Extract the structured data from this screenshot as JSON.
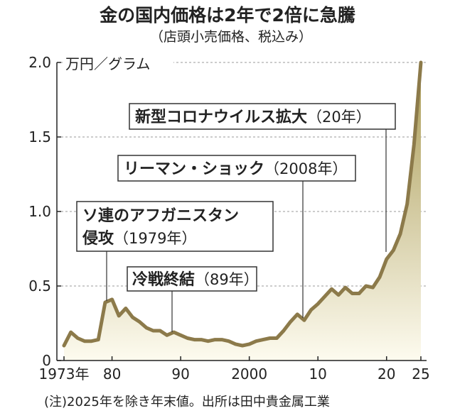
{
  "chart_data": {
    "type": "area",
    "title": "金の国内価格は2年で2倍に急騰",
    "subtitle": "（店頭小売価格、税込み）",
    "ylabel": "万円／グラム",
    "note": "(注)2025年を除き年末値。出所は田中貴金属工業",
    "ylim": [
      0,
      2.0
    ],
    "yticks": [
      {
        "value": 0,
        "label": "0"
      },
      {
        "value": 0.5,
        "label": "0.5"
      },
      {
        "value": 1.0,
        "label": "1.0"
      },
      {
        "value": 1.5,
        "label": "1.5"
      },
      {
        "value": 2.0,
        "label": "2.0"
      }
    ],
    "xlim": [
      1973,
      2025
    ],
    "xticks": [
      {
        "value": 1973,
        "label": "1973年"
      },
      {
        "value": 1980,
        "label": "80"
      },
      {
        "value": 1990,
        "label": "90"
      },
      {
        "value": 2000,
        "label": "2000"
      },
      {
        "value": 2010,
        "label": "10"
      },
      {
        "value": 2020,
        "label": "20"
      },
      {
        "value": 2025,
        "label": "25"
      }
    ],
    "x": [
      1973,
      1974,
      1975,
      1976,
      1977,
      1978,
      1979,
      1980,
      1981,
      1982,
      1983,
      1984,
      1985,
      1986,
      1987,
      1988,
      1989,
      1990,
      1991,
      1992,
      1993,
      1994,
      1995,
      1996,
      1997,
      1998,
      1999,
      2000,
      2001,
      2002,
      2003,
      2004,
      2005,
      2006,
      2007,
      2008,
      2009,
      2010,
      2011,
      2012,
      2013,
      2014,
      2015,
      2016,
      2017,
      2018,
      2019,
      2020,
      2021,
      2022,
      2023,
      2024,
      2025
    ],
    "values": [
      0.1,
      0.19,
      0.15,
      0.13,
      0.13,
      0.14,
      0.39,
      0.41,
      0.3,
      0.35,
      0.29,
      0.26,
      0.22,
      0.2,
      0.2,
      0.17,
      0.19,
      0.17,
      0.15,
      0.14,
      0.14,
      0.13,
      0.14,
      0.14,
      0.13,
      0.11,
      0.1,
      0.11,
      0.13,
      0.14,
      0.15,
      0.15,
      0.2,
      0.26,
      0.31,
      0.27,
      0.34,
      0.38,
      0.43,
      0.48,
      0.44,
      0.49,
      0.45,
      0.45,
      0.5,
      0.49,
      0.56,
      0.68,
      0.74,
      0.85,
      1.05,
      1.45,
      2.0
    ],
    "colors": {
      "line": "#8c7a4a",
      "fill_top": "#a99a54",
      "fill_bottom": "#fdfbef",
      "grid": "#9a9a9a"
    },
    "grid": true,
    "annotations": [
      {
        "year": 1979,
        "strong": "ソ連のアフガニスタン",
        "strong2": "侵攻",
        "light": "（1979年）"
      },
      {
        "year": 1989,
        "strong": "冷戦終結",
        "light": "（89年）"
      },
      {
        "year": 2008,
        "strong": "リーマン・ショック",
        "light": "（2008年）"
      },
      {
        "year": 2020,
        "strong": "新型コロナウイルス拡大",
        "light": "（20年）"
      }
    ]
  }
}
